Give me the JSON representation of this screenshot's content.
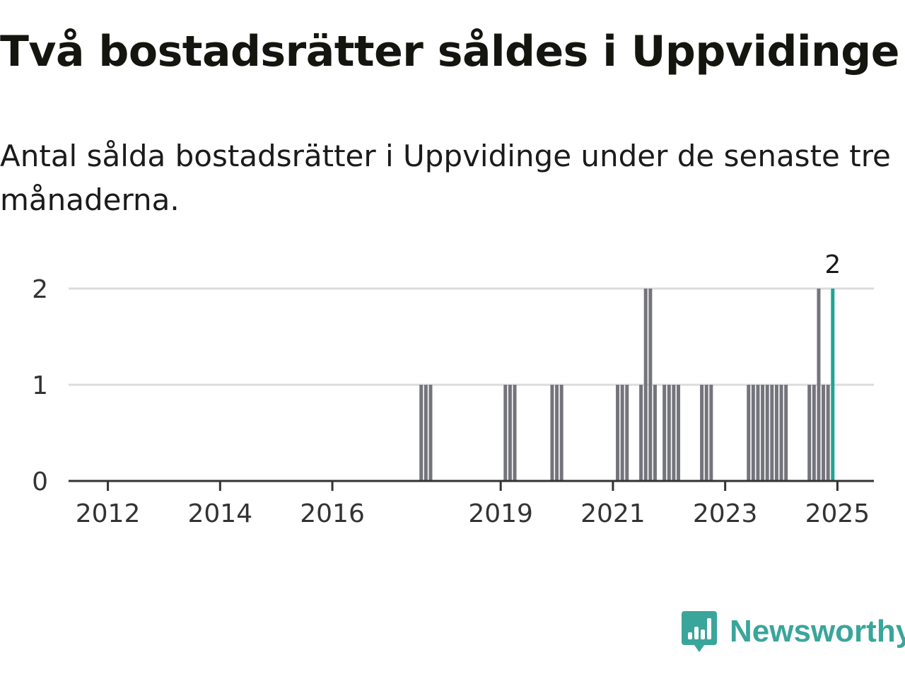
{
  "title": "Två bostadsrätter såldes i Uppvidinge",
  "subtitle": "Antal sålda bostadsrätter i Uppvidinge under de senaste tre månaderna.",
  "logo_text": "Newsworthy",
  "colors": {
    "bar": "#74747c",
    "highlight": "#1fa396",
    "grid": "#dcdcdc",
    "axis": "#333333",
    "logo": "#3aa59b"
  },
  "chart_data": {
    "type": "bar",
    "x_type": "date",
    "xlim": [
      "2011-01",
      "2025-12"
    ],
    "ylim": [
      0,
      2
    ],
    "y_ticks": [
      0,
      1,
      2
    ],
    "x_ticks": [
      "2012",
      "2014",
      "2016",
      "2019",
      "2021",
      "2023",
      "2025"
    ],
    "grid": true,
    "x": [
      "2017-08",
      "2017-09",
      "2017-10",
      "2019-02",
      "2019-03",
      "2019-04",
      "2019-12",
      "2020-01",
      "2020-02",
      "2021-02",
      "2021-03",
      "2021-04",
      "2021-07",
      "2021-08",
      "2021-09",
      "2021-10",
      "2021-12",
      "2022-01",
      "2022-02",
      "2022-03",
      "2022-08",
      "2022-09",
      "2022-10",
      "2023-06",
      "2023-07",
      "2023-08",
      "2023-09",
      "2023-10",
      "2023-11",
      "2023-12",
      "2024-01",
      "2024-02",
      "2024-07",
      "2024-08",
      "2024-09",
      "2024-10",
      "2024-11",
      "2024-12"
    ],
    "values": [
      1,
      1,
      1,
      1,
      1,
      1,
      1,
      1,
      1,
      1,
      1,
      1,
      1,
      2,
      2,
      1,
      1,
      1,
      1,
      1,
      1,
      1,
      1,
      1,
      1,
      1,
      1,
      1,
      1,
      1,
      1,
      1,
      1,
      1,
      2,
      1,
      1,
      2
    ],
    "highlight": {
      "x": "2024-12",
      "value": 2
    },
    "data_label": "2"
  }
}
